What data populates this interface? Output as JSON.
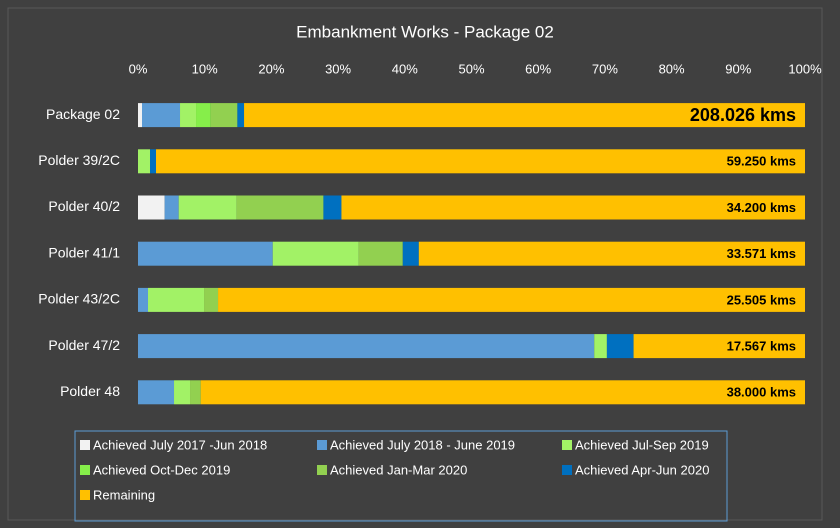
{
  "chart_data": {
    "type": "bar",
    "orientation": "horizontal",
    "stacked": true,
    "title": "Embankment Works - Package 02",
    "categories": [
      "Package 02",
      "Polder 39/2C",
      "Polder 40/2",
      "Polder 41/1",
      "Polder 43/2C",
      "Polder 47/2",
      "Polder 48"
    ],
    "totals": [
      "208.026 kms",
      "59.250 kms",
      "34.200 kms",
      "33.571 kms",
      "25.505 kms",
      "17.567 kms",
      "38.000 kms"
    ],
    "xlim": [
      0,
      100
    ],
    "xticks": [
      {
        "value": 0,
        "label": "0%"
      },
      {
        "value": 10,
        "label": "10%"
      },
      {
        "value": 20,
        "label": "20%"
      },
      {
        "value": 30,
        "label": "30%"
      },
      {
        "value": 40,
        "label": "40%"
      },
      {
        "value": 50,
        "label": "50%"
      },
      {
        "value": 60,
        "label": "60%"
      },
      {
        "value": 70,
        "label": "70%"
      },
      {
        "value": 80,
        "label": "80%"
      },
      {
        "value": 90,
        "label": "90%"
      },
      {
        "value": 100,
        "label": "100%"
      }
    ],
    "grid": false,
    "legend": "bottom",
    "series": [
      {
        "name": "Achieved July 2017 -Jun 2018",
        "color": "#f2f2f2",
        "values": [
          0.6,
          0,
          4.0,
          0,
          0,
          0,
          0
        ]
      },
      {
        "name": "Achieved  July 2018 - June 2019",
        "color": "#5b9bd5",
        "values": [
          5.7,
          0,
          2.1,
          20.2,
          1.5,
          68.4,
          5.4
        ]
      },
      {
        "name": "Achieved  Jul-Sep 2019",
        "color": "#a2f266",
        "values": [
          2.4,
          1.8,
          8.7,
          12.9,
          8.4,
          1.9,
          2.4
        ]
      },
      {
        "name": "Achieved  Oct-Dec 2019",
        "color": "#86ee4a",
        "values": [
          2.2,
          0,
          0,
          0,
          0,
          0,
          0
        ]
      },
      {
        "name": "Achieved  Jan-Mar 2020",
        "color": "#92d050",
        "values": [
          4.0,
          0,
          13.0,
          6.6,
          2.1,
          0,
          1.6
        ]
      },
      {
        "name": "Achieved  Apr-Jun 2020",
        "color": "#0070c0",
        "values": [
          1.0,
          0.9,
          2.7,
          2.4,
          0,
          4.0,
          0
        ]
      },
      {
        "name": "Remaining",
        "color": "#ffc000",
        "values": [
          84.1,
          97.3,
          69.5,
          57.9,
          88.0,
          25.7,
          90.6
        ]
      }
    ]
  }
}
